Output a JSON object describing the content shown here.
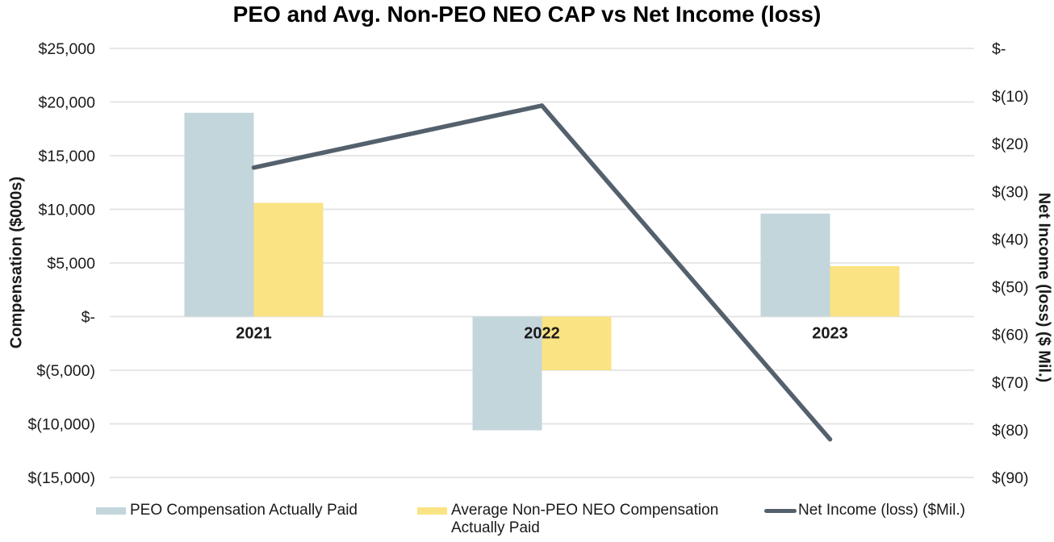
{
  "chart_data": {
    "type": "bar",
    "subtype": "combo-bar-line-dual-axis",
    "title": "PEO and Avg. Non-PEO NEO CAP vs Net Income (loss)",
    "categories": [
      "2021",
      "2022",
      "2023"
    ],
    "series": [
      {
        "name": "PEO Compensation Actually Paid",
        "type": "bar",
        "axis": "left",
        "color": "#c3d6dc",
        "values": [
          19000,
          -10600,
          9600
        ]
      },
      {
        "name": "Average Non-PEO NEO Compensation Actually Paid",
        "type": "bar",
        "axis": "left",
        "color": "#fae383",
        "values": [
          10600,
          -5000,
          4700
        ]
      },
      {
        "name": "Net Income (loss) ($Mil.)",
        "type": "line",
        "axis": "right",
        "color": "#54616d",
        "values": [
          -25,
          -12,
          -82
        ]
      }
    ],
    "left_axis": {
      "label": "Compensation ($000s)",
      "min": -15000,
      "max": 25000,
      "tick_step": 5000,
      "tick_values": [
        25000,
        20000,
        15000,
        10000,
        5000,
        0,
        -5000,
        -10000,
        -15000
      ],
      "tick_labels": [
        "$25,000",
        "$20,000",
        "$15,000",
        "$10,000",
        "$5,000",
        "$-",
        "$(5,000)",
        "$(10,000)",
        "$(15,000)"
      ]
    },
    "right_axis": {
      "label": "Net Income (loss) ($ Mil.)",
      "min": -90,
      "max": 0,
      "tick_step": 10,
      "tick_values": [
        0,
        -10,
        -20,
        -30,
        -40,
        -50,
        -60,
        -70,
        -80,
        -90
      ],
      "tick_labels": [
        "$-",
        "$(10)",
        "$(20)",
        "$(30)",
        "$(40)",
        "$(50)",
        "$(60)",
        "$(70)",
        "$(80)",
        "$(90)"
      ]
    },
    "grid": {
      "horizontal": true,
      "color": "#e2e2e2"
    },
    "legend": {
      "position": "bottom",
      "items": [
        {
          "label": "PEO Compensation Actually Paid",
          "swatch": "bar",
          "color": "#c3d6dc"
        },
        {
          "label": "Average Non-PEO NEO Compensation Actually Paid",
          "swatch": "bar",
          "color": "#fae383"
        },
        {
          "label": "Net Income (loss) ($Mil.)",
          "swatch": "line",
          "color": "#54616d"
        }
      ]
    }
  }
}
